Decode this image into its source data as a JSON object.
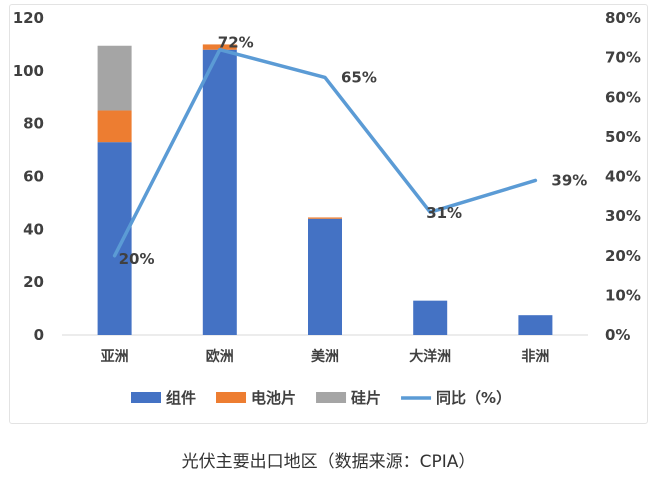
{
  "chart_data": {
    "type": "bar",
    "categories": [
      "亚洲",
      "欧洲",
      "美洲",
      "大洋洲",
      "非洲"
    ],
    "series": [
      {
        "name": "组件",
        "kind": "bar",
        "color": "#4472C4",
        "values": [
          73,
          108,
          44,
          13,
          7.5
        ]
      },
      {
        "name": "电池片",
        "kind": "bar",
        "color": "#ED7D31",
        "values": [
          12,
          2,
          0.5,
          0,
          0
        ]
      },
      {
        "name": "硅片",
        "kind": "bar",
        "color": "#A5A5A5",
        "values": [
          24.5,
          0,
          0,
          0,
          0
        ]
      },
      {
        "name": "同比（%）",
        "kind": "line",
        "color": "#5B9BD5",
        "axis": "right",
        "values": [
          20,
          72,
          65,
          31,
          39
        ]
      }
    ],
    "line_labels": [
      "20%",
      "72%",
      "65%",
      "31%",
      "39%"
    ],
    "stacked": true,
    "ylim": [
      0,
      120
    ],
    "yticks": [
      "0",
      "20",
      "40",
      "60",
      "80",
      "100",
      "120"
    ],
    "y2lim": [
      0,
      80
    ],
    "y2ticks": [
      "0%",
      "10%",
      "20%",
      "30%",
      "40%",
      "50%",
      "60%",
      "70%",
      "80%"
    ],
    "grid": false,
    "legend_position": "bottom"
  },
  "caption": "光伏主要出口地区（数据来源：CPIA）"
}
